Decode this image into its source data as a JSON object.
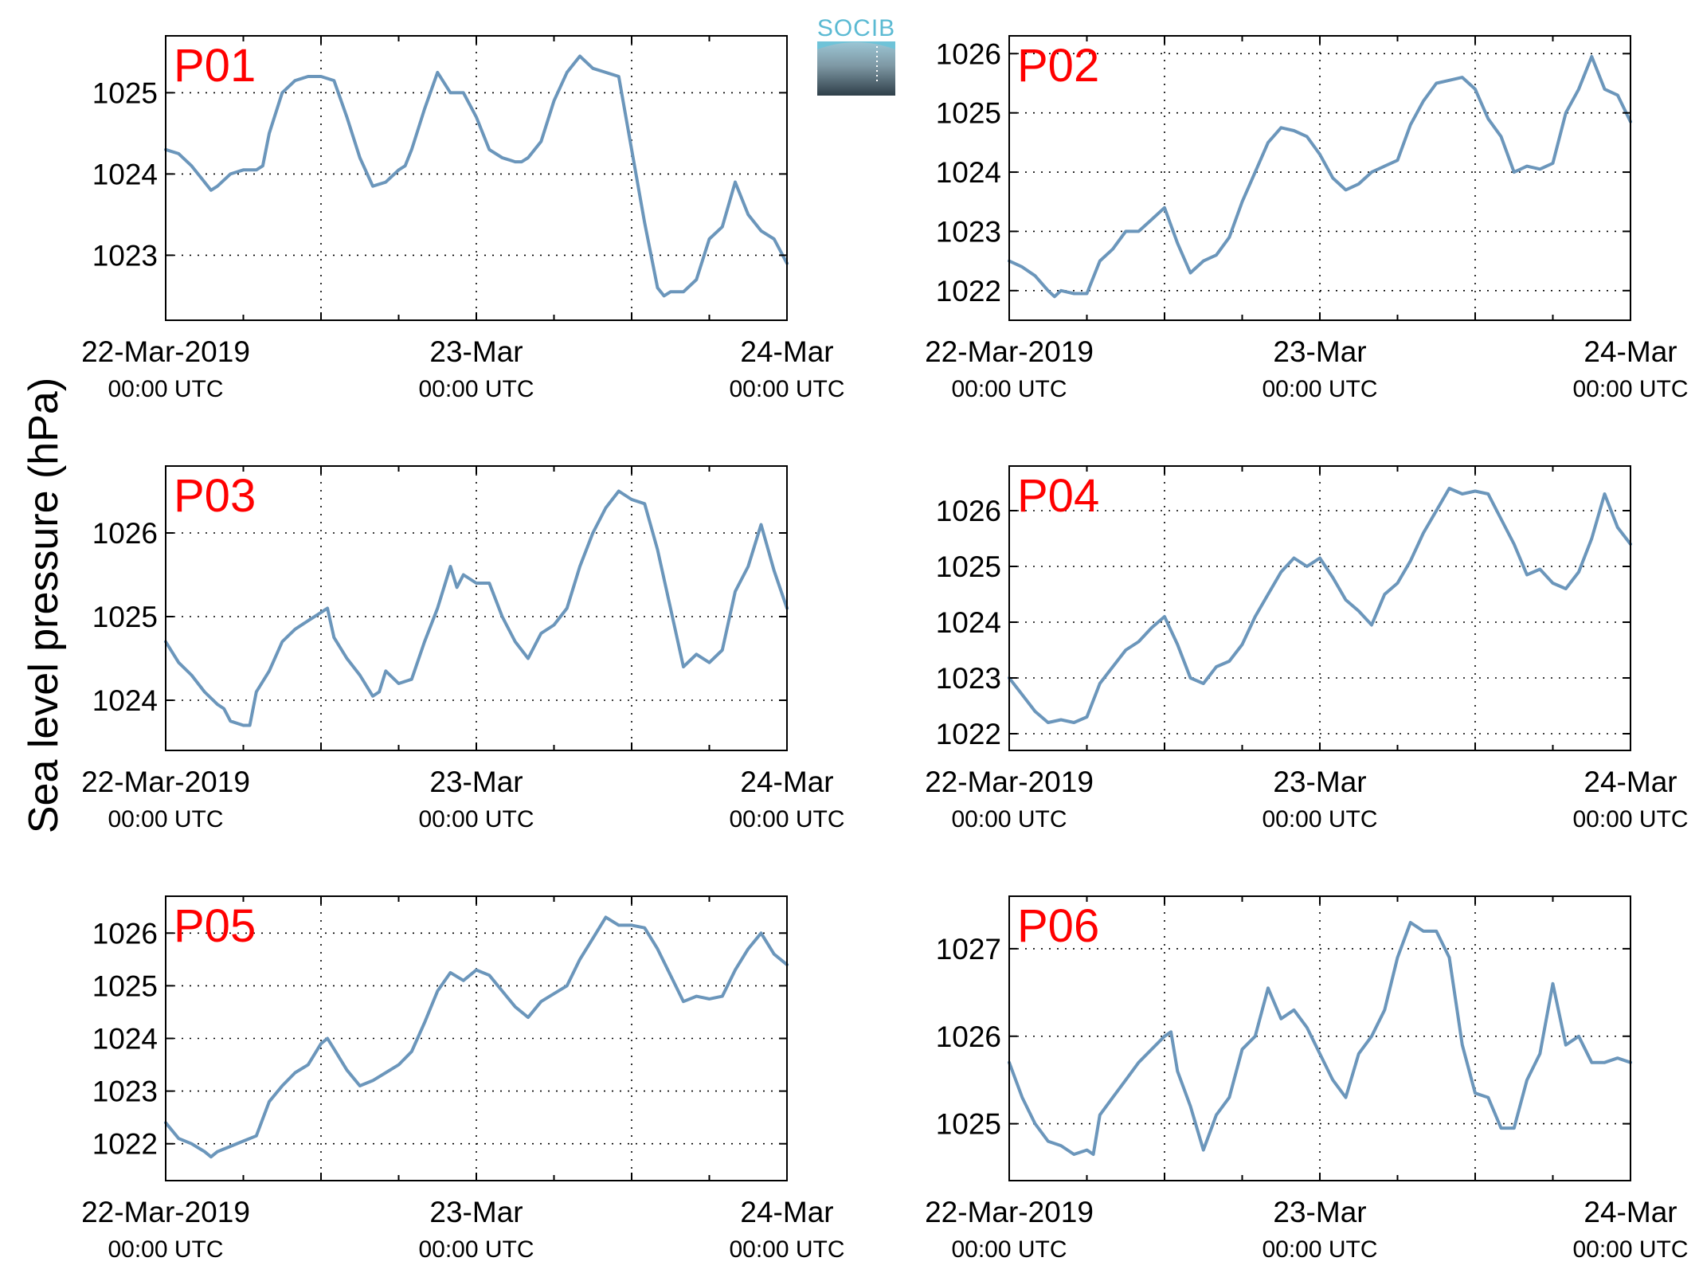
{
  "figure": {
    "ylabel": "Sea level pressure (hPa)",
    "logo_text": "SOCIB",
    "line_color": "#6b96bb",
    "label_color": "#ff0000"
  },
  "chart_data": [
    {
      "type": "line",
      "title": "P01",
      "xticks": [
        {
          "t": 0,
          "date": "22-Mar-2019",
          "time": "00:00 UTC"
        },
        {
          "t": 24,
          "date": "23-Mar",
          "time": "00:00 UTC"
        },
        {
          "t": 48,
          "date": "24-Mar",
          "time": "00:00 UTC"
        }
      ],
      "xlim": [
        0,
        48
      ],
      "ylim": [
        1022.2,
        1025.7
      ],
      "yticks": [
        1023,
        1024,
        1025
      ],
      "grid": true,
      "series": [
        {
          "x": [
            0,
            1,
            2,
            3,
            3.5,
            4,
            5,
            6,
            7,
            7.5,
            8,
            9,
            10,
            11,
            12,
            13,
            14,
            15,
            16,
            17,
            18,
            18.5,
            19,
            20,
            21,
            22,
            23,
            24,
            25,
            26,
            27,
            27.5,
            28,
            29,
            30,
            31,
            32,
            33,
            34,
            35,
            36,
            37,
            38,
            38.5,
            39,
            40,
            41,
            42,
            43,
            44,
            45,
            46,
            47,
            48
          ],
          "y": [
            1024.3,
            1024.25,
            1024.1,
            1023.9,
            1023.8,
            1023.85,
            1024.0,
            1024.05,
            1024.05,
            1024.1,
            1024.5,
            1025.0,
            1025.15,
            1025.2,
            1025.2,
            1025.15,
            1024.7,
            1024.2,
            1023.85,
            1023.9,
            1024.05,
            1024.1,
            1024.3,
            1024.8,
            1025.25,
            1025.0,
            1025.0,
            1024.7,
            1024.3,
            1024.2,
            1024.15,
            1024.15,
            1024.2,
            1024.4,
            1024.9,
            1025.25,
            1025.45,
            1025.3,
            1025.25,
            1025.2,
            1024.3,
            1023.4,
            1022.6,
            1022.5,
            1022.55,
            1022.55,
            1022.7,
            1023.2,
            1023.35,
            1023.9,
            1023.5,
            1023.3,
            1023.2,
            1022.9
          ]
        }
      ]
    },
    {
      "type": "line",
      "title": "P02",
      "xticks": [
        {
          "t": 0,
          "date": "22-Mar-2019",
          "time": "00:00 UTC"
        },
        {
          "t": 24,
          "date": "23-Mar",
          "time": "00:00 UTC"
        },
        {
          "t": 48,
          "date": "24-Mar",
          "time": "00:00 UTC"
        }
      ],
      "xlim": [
        0,
        48
      ],
      "ylim": [
        1021.5,
        1026.3
      ],
      "yticks": [
        1022,
        1023,
        1024,
        1025,
        1026
      ],
      "grid": true,
      "series": [
        {
          "x": [
            0,
            1,
            2,
            3,
            3.5,
            4,
            5,
            6,
            7,
            8,
            9,
            10,
            11,
            12,
            13,
            14,
            15,
            16,
            17,
            18,
            19,
            20,
            21,
            22,
            23,
            24,
            25,
            26,
            27,
            28,
            29,
            30,
            31,
            32,
            33,
            34,
            35,
            36,
            37,
            38,
            39,
            40,
            41,
            42,
            43,
            44,
            45,
            46,
            47,
            48
          ],
          "y": [
            1022.5,
            1022.4,
            1022.25,
            1022.0,
            1021.9,
            1022.0,
            1021.95,
            1021.95,
            1022.5,
            1022.7,
            1023.0,
            1023.0,
            1023.2,
            1023.4,
            1022.8,
            1022.3,
            1022.5,
            1022.6,
            1022.9,
            1023.5,
            1024.0,
            1024.5,
            1024.75,
            1024.7,
            1024.6,
            1024.3,
            1023.9,
            1023.7,
            1023.8,
            1024.0,
            1024.1,
            1024.2,
            1024.8,
            1025.2,
            1025.5,
            1025.55,
            1025.6,
            1025.4,
            1024.9,
            1024.6,
            1024.0,
            1024.1,
            1024.05,
            1024.15,
            1025.0,
            1025.4,
            1025.95,
            1025.4,
            1025.3,
            1024.85
          ]
        }
      ]
    },
    {
      "type": "line",
      "title": "P03",
      "xticks": [
        {
          "t": 0,
          "date": "22-Mar-2019",
          "time": "00:00 UTC"
        },
        {
          "t": 24,
          "date": "23-Mar",
          "time": "00:00 UTC"
        },
        {
          "t": 48,
          "date": "24-Mar",
          "time": "00:00 UTC"
        }
      ],
      "xlim": [
        0,
        48
      ],
      "ylim": [
        1023.4,
        1026.8
      ],
      "yticks": [
        1024,
        1025,
        1026
      ],
      "grid": true,
      "series": [
        {
          "x": [
            0,
            1,
            2,
            3,
            4,
            4.5,
            5,
            6,
            6.5,
            7,
            8,
            9,
            10,
            11,
            12,
            12.5,
            13,
            14,
            15,
            16,
            16.5,
            17,
            18,
            19,
            20,
            21,
            22,
            22.5,
            23,
            24,
            25,
            26,
            27,
            28,
            29,
            30,
            31,
            32,
            33,
            34,
            35,
            36,
            37,
            38,
            39,
            40,
            41,
            42,
            43,
            44,
            45,
            46,
            47,
            48
          ],
          "y": [
            1024.7,
            1024.45,
            1024.3,
            1024.1,
            1023.95,
            1023.9,
            1023.75,
            1023.7,
            1023.7,
            1024.1,
            1024.35,
            1024.7,
            1024.85,
            1024.95,
            1025.05,
            1025.1,
            1024.75,
            1024.5,
            1024.3,
            1024.05,
            1024.1,
            1024.35,
            1024.2,
            1024.25,
            1024.7,
            1025.1,
            1025.6,
            1025.35,
            1025.5,
            1025.4,
            1025.4,
            1025.0,
            1024.7,
            1024.5,
            1024.8,
            1024.9,
            1025.1,
            1025.6,
            1026.0,
            1026.3,
            1026.5,
            1026.4,
            1026.35,
            1025.8,
            1025.1,
            1024.4,
            1024.55,
            1024.45,
            1024.6,
            1025.3,
            1025.6,
            1026.1,
            1025.55,
            1025.1
          ]
        }
      ]
    },
    {
      "type": "line",
      "title": "P04",
      "xticks": [
        {
          "t": 0,
          "date": "22-Mar-2019",
          "time": "00:00 UTC"
        },
        {
          "t": 24,
          "date": "23-Mar",
          "time": "00:00 UTC"
        },
        {
          "t": 48,
          "date": "24-Mar",
          "time": "00:00 UTC"
        }
      ],
      "xlim": [
        0,
        48
      ],
      "ylim": [
        1021.7,
        1026.8
      ],
      "yticks": [
        1022,
        1023,
        1024,
        1025,
        1026
      ],
      "grid": true,
      "series": [
        {
          "x": [
            0,
            1,
            2,
            3,
            4,
            5,
            6,
            7,
            8,
            9,
            10,
            11,
            12,
            13,
            14,
            15,
            16,
            17,
            18,
            19,
            20,
            21,
            22,
            23,
            24,
            25,
            26,
            27,
            28,
            29,
            30,
            31,
            32,
            33,
            34,
            35,
            36,
            37,
            38,
            39,
            40,
            41,
            42,
            43,
            44,
            45,
            46,
            47,
            48
          ],
          "y": [
            1023.0,
            1022.7,
            1022.4,
            1022.2,
            1022.25,
            1022.2,
            1022.3,
            1022.9,
            1023.2,
            1023.5,
            1023.65,
            1023.9,
            1024.1,
            1023.6,
            1023.0,
            1022.9,
            1023.2,
            1023.3,
            1023.6,
            1024.1,
            1024.5,
            1024.9,
            1025.15,
            1025.0,
            1025.15,
            1024.8,
            1024.4,
            1024.2,
            1023.95,
            1024.5,
            1024.7,
            1025.1,
            1025.6,
            1026.0,
            1026.4,
            1026.3,
            1026.35,
            1026.3,
            1025.85,
            1025.4,
            1024.85,
            1024.95,
            1024.7,
            1024.6,
            1024.9,
            1025.5,
            1026.3,
            1025.7,
            1025.4
          ]
        }
      ]
    },
    {
      "type": "line",
      "title": "P05",
      "xticks": [
        {
          "t": 0,
          "date": "22-Mar-2019",
          "time": "00:00 UTC"
        },
        {
          "t": 24,
          "date": "23-Mar",
          "time": "00:00 UTC"
        },
        {
          "t": 48,
          "date": "24-Mar",
          "time": "00:00 UTC"
        }
      ],
      "xlim": [
        0,
        48
      ],
      "ylim": [
        1021.3,
        1026.7
      ],
      "yticks": [
        1022,
        1023,
        1024,
        1025,
        1026
      ],
      "grid": true,
      "series": [
        {
          "x": [
            0,
            1,
            2,
            3,
            3.5,
            4,
            5,
            6,
            7,
            8,
            9,
            10,
            11,
            12,
            12.5,
            13,
            14,
            15,
            16,
            17,
            18,
            19,
            20,
            21,
            22,
            23,
            24,
            25,
            26,
            27,
            28,
            29,
            30,
            31,
            32,
            33,
            34,
            35,
            36,
            37,
            38,
            39,
            40,
            41,
            42,
            43,
            44,
            45,
            46,
            47,
            48
          ],
          "y": [
            1022.4,
            1022.1,
            1022.0,
            1021.85,
            1021.75,
            1021.85,
            1021.95,
            1022.05,
            1022.15,
            1022.8,
            1023.1,
            1023.35,
            1023.5,
            1023.9,
            1024.0,
            1023.8,
            1023.4,
            1023.1,
            1023.2,
            1023.35,
            1023.5,
            1023.75,
            1024.3,
            1024.9,
            1025.25,
            1025.1,
            1025.3,
            1025.2,
            1024.9,
            1024.6,
            1024.4,
            1024.7,
            1024.85,
            1025.0,
            1025.5,
            1025.9,
            1026.3,
            1026.15,
            1026.15,
            1026.1,
            1025.7,
            1025.2,
            1024.7,
            1024.8,
            1024.75,
            1024.8,
            1025.3,
            1025.7,
            1026.0,
            1025.6,
            1025.4
          ]
        }
      ]
    },
    {
      "type": "line",
      "title": "P06",
      "xticks": [
        {
          "t": 0,
          "date": "22-Mar-2019",
          "time": "00:00 UTC"
        },
        {
          "t": 24,
          "date": "23-Mar",
          "time": "00:00 UTC"
        },
        {
          "t": 48,
          "date": "24-Mar",
          "time": "00:00 UTC"
        }
      ],
      "xlim": [
        0,
        48
      ],
      "ylim": [
        1024.35,
        1027.6
      ],
      "yticks": [
        1025,
        1026,
        1027
      ],
      "grid": true,
      "series": [
        {
          "x": [
            0,
            1,
            2,
            3,
            4,
            5,
            6,
            6.5,
            7,
            8,
            9,
            10,
            11,
            12,
            12.5,
            13,
            14,
            15,
            16,
            17,
            18,
            19,
            20,
            21,
            22,
            23,
            24,
            25,
            26,
            27,
            28,
            29,
            30,
            31,
            32,
            33,
            34,
            35,
            36,
            37,
            38,
            39,
            40,
            41,
            42,
            43,
            44,
            45,
            46,
            47,
            48
          ],
          "y": [
            1025.7,
            1025.3,
            1025.0,
            1024.8,
            1024.75,
            1024.65,
            1024.7,
            1024.65,
            1025.1,
            1025.3,
            1025.5,
            1025.7,
            1025.85,
            1026.0,
            1026.05,
            1025.6,
            1025.2,
            1024.7,
            1025.1,
            1025.3,
            1025.85,
            1026.0,
            1026.55,
            1026.2,
            1026.3,
            1026.1,
            1025.8,
            1025.5,
            1025.3,
            1025.8,
            1026.0,
            1026.3,
            1026.9,
            1027.3,
            1027.2,
            1027.2,
            1026.9,
            1025.9,
            1025.35,
            1025.3,
            1024.95,
            1024.95,
            1025.5,
            1025.8,
            1026.6,
            1025.9,
            1026.0,
            1025.7,
            1025.7,
            1025.75,
            1025.7
          ]
        }
      ]
    }
  ]
}
